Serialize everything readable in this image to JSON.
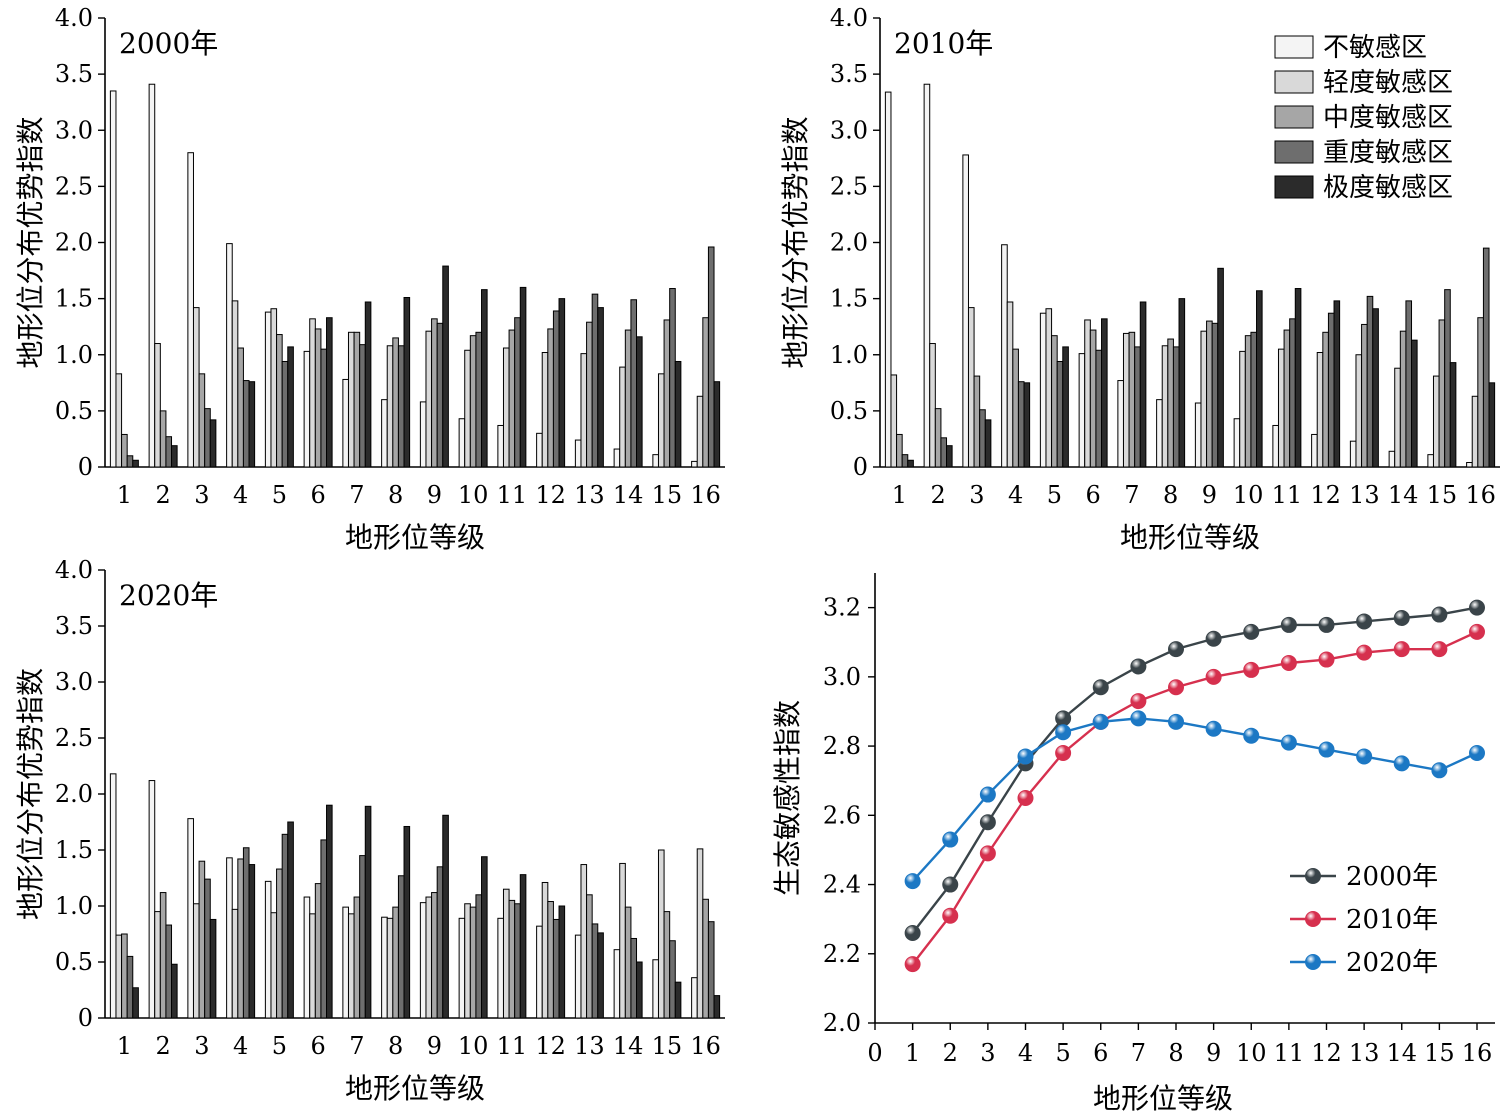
{
  "chart_data": [
    {
      "type": "bar",
      "title": "2000年",
      "xlabel": "地形位等级",
      "ylabel": "地形位分布优势指数",
      "ylim": [
        0,
        4.0
      ],
      "yticks": [
        "0",
        "0.5",
        "1.0",
        "1.5",
        "2.0",
        "2.5",
        "3.0",
        "3.5",
        "4.0"
      ],
      "categories": [
        "1",
        "2",
        "3",
        "4",
        "5",
        "6",
        "7",
        "8",
        "9",
        "10",
        "11",
        "12",
        "13",
        "14",
        "15",
        "16"
      ],
      "series": [
        {
          "name": "不敏感区",
          "values": [
            3.35,
            3.41,
            2.8,
            1.99,
            1.38,
            1.03,
            0.78,
            0.6,
            0.58,
            0.43,
            0.37,
            0.3,
            0.24,
            0.16,
            0.11,
            0.05
          ]
        },
        {
          "name": "轻度敏感区",
          "values": [
            0.83,
            1.1,
            1.42,
            1.48,
            1.41,
            1.32,
            1.2,
            1.08,
            1.21,
            1.04,
            1.06,
            1.02,
            1.01,
            0.89,
            0.83,
            0.63
          ]
        },
        {
          "name": "中度敏感区",
          "values": [
            0.29,
            0.5,
            0.83,
            1.06,
            1.18,
            1.23,
            1.2,
            1.15,
            1.32,
            1.17,
            1.22,
            1.23,
            1.29,
            1.22,
            1.31,
            1.33
          ]
        },
        {
          "name": "重度敏感区",
          "values": [
            0.1,
            0.27,
            0.52,
            0.77,
            0.94,
            1.05,
            1.09,
            1.08,
            1.28,
            1.2,
            1.33,
            1.39,
            1.54,
            1.49,
            1.59,
            1.96
          ]
        },
        {
          "name": "极度敏感区",
          "values": [
            0.06,
            0.19,
            0.42,
            0.76,
            1.07,
            1.33,
            1.47,
            1.51,
            1.79,
            1.58,
            1.6,
            1.5,
            1.42,
            1.16,
            0.94,
            0.76
          ]
        }
      ]
    },
    {
      "type": "bar",
      "title": "2010年",
      "xlabel": "地形位等级",
      "ylabel": "地形位分布优势指数",
      "ylim": [
        0,
        4.0
      ],
      "yticks": [
        "0",
        "0.5",
        "1.0",
        "1.5",
        "2.0",
        "2.5",
        "3.0",
        "3.5",
        "4.0"
      ],
      "categories": [
        "1",
        "2",
        "3",
        "4",
        "5",
        "6",
        "7",
        "8",
        "9",
        "10",
        "11",
        "12",
        "13",
        "14",
        "15",
        "16"
      ],
      "series": [
        {
          "name": "不敏感区",
          "values": [
            3.34,
            3.41,
            2.78,
            1.98,
            1.37,
            1.01,
            0.77,
            0.6,
            0.57,
            0.43,
            0.37,
            0.29,
            0.23,
            0.14,
            0.11,
            0.04
          ]
        },
        {
          "name": "轻度敏感区",
          "values": [
            0.82,
            1.1,
            1.42,
            1.47,
            1.41,
            1.31,
            1.19,
            1.08,
            1.21,
            1.03,
            1.05,
            1.02,
            1.0,
            0.88,
            0.81,
            0.63
          ]
        },
        {
          "name": "中度敏感区",
          "values": [
            0.29,
            0.52,
            0.81,
            1.05,
            1.17,
            1.22,
            1.2,
            1.14,
            1.3,
            1.17,
            1.22,
            1.2,
            1.27,
            1.21,
            1.31,
            1.33
          ]
        },
        {
          "name": "重度敏感区",
          "values": [
            0.11,
            0.26,
            0.51,
            0.76,
            0.94,
            1.04,
            1.07,
            1.07,
            1.28,
            1.2,
            1.32,
            1.37,
            1.52,
            1.48,
            1.58,
            1.95
          ]
        },
        {
          "name": "极度敏感区",
          "values": [
            0.06,
            0.19,
            0.42,
            0.75,
            1.07,
            1.32,
            1.47,
            1.5,
            1.77,
            1.57,
            1.59,
            1.48,
            1.41,
            1.13,
            0.93,
            0.75
          ]
        }
      ],
      "legend": "top-right"
    },
    {
      "type": "bar",
      "title": "2020年",
      "xlabel": "地形位等级",
      "ylabel": "地形位分布优势指数",
      "ylim": [
        0,
        4.0
      ],
      "yticks": [
        "0",
        "0.5",
        "1.0",
        "1.5",
        "2.0",
        "2.5",
        "3.0",
        "3.5",
        "4.0"
      ],
      "categories": [
        "1",
        "2",
        "3",
        "4",
        "5",
        "6",
        "7",
        "8",
        "9",
        "10",
        "11",
        "12",
        "13",
        "14",
        "15",
        "16"
      ],
      "series": [
        {
          "name": "不敏感区",
          "values": [
            2.18,
            2.12,
            1.78,
            1.43,
            1.22,
            1.08,
            0.99,
            0.9,
            1.03,
            0.89,
            0.89,
            0.82,
            0.74,
            0.61,
            0.52,
            0.36
          ]
        },
        {
          "name": "轻度敏感区",
          "values": [
            0.74,
            0.95,
            1.02,
            0.97,
            0.94,
            0.93,
            0.93,
            0.89,
            1.08,
            1.02,
            1.15,
            1.21,
            1.37,
            1.38,
            1.5,
            1.51
          ]
        },
        {
          "name": "中度敏感区",
          "values": [
            0.75,
            1.12,
            1.4,
            1.42,
            1.33,
            1.2,
            1.08,
            0.99,
            1.12,
            0.99,
            1.05,
            1.04,
            1.1,
            0.99,
            0.95,
            1.06
          ]
        },
        {
          "name": "重度敏感区",
          "values": [
            0.55,
            0.83,
            1.24,
            1.52,
            1.64,
            1.59,
            1.45,
            1.27,
            1.35,
            1.1,
            1.02,
            0.88,
            0.84,
            0.71,
            0.69,
            0.86
          ]
        },
        {
          "name": "极度敏感区",
          "values": [
            0.27,
            0.48,
            0.88,
            1.37,
            1.75,
            1.9,
            1.89,
            1.71,
            1.81,
            1.44,
            1.28,
            1.0,
            0.76,
            0.5,
            0.32,
            0.2
          ]
        }
      ]
    },
    {
      "type": "line",
      "xlabel": "地形位等级",
      "ylabel": "生态敏感性指数",
      "xlim": [
        0,
        16
      ],
      "ylim": [
        2.0,
        3.3
      ],
      "xticks": [
        "0",
        "1",
        "2",
        "3",
        "4",
        "5",
        "6",
        "7",
        "8",
        "9",
        "10",
        "11",
        "12",
        "13",
        "14",
        "15",
        "16"
      ],
      "yticks": [
        "2.0",
        "2.2",
        "2.4",
        "2.6",
        "2.8",
        "3.0",
        "3.2"
      ],
      "x": [
        1,
        2,
        3,
        4,
        5,
        6,
        7,
        8,
        9,
        10,
        11,
        12,
        13,
        14,
        15,
        16
      ],
      "series": [
        {
          "name": "2000年",
          "color": "#3a4449",
          "values": [
            2.26,
            2.4,
            2.58,
            2.75,
            2.88,
            2.97,
            3.03,
            3.08,
            3.11,
            3.13,
            3.15,
            3.15,
            3.16,
            3.17,
            3.18,
            3.2
          ]
        },
        {
          "name": "2010年",
          "color": "#d6304e",
          "values": [
            2.17,
            2.31,
            2.49,
            2.65,
            2.78,
            2.87,
            2.93,
            2.97,
            3.0,
            3.02,
            3.04,
            3.05,
            3.07,
            3.08,
            3.08,
            3.13
          ]
        },
        {
          "name": "2020年",
          "color": "#1c78c4",
          "values": [
            2.41,
            2.53,
            2.66,
            2.77,
            2.84,
            2.87,
            2.88,
            2.87,
            2.85,
            2.83,
            2.81,
            2.79,
            2.77,
            2.75,
            2.73,
            2.78
          ]
        }
      ],
      "legend": "bottom-right"
    }
  ],
  "colors": {
    "bar_fills": [
      "#f4f4f4",
      "#d9d9d9",
      "#a6a6a6",
      "#6e6e6e",
      "#2b2b2b"
    ]
  }
}
